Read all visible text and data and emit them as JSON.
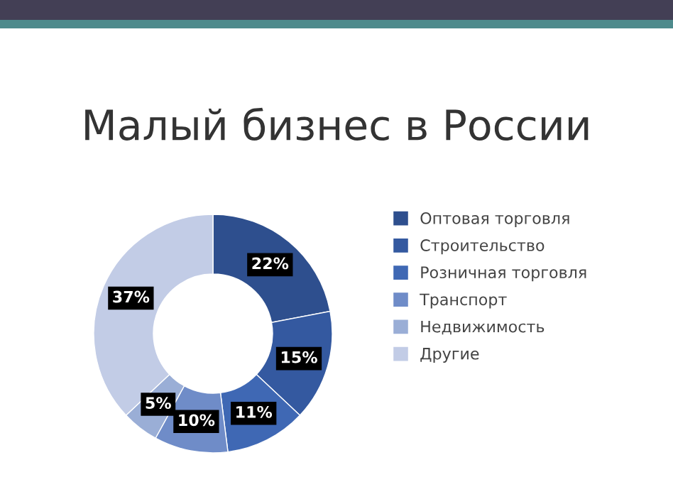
{
  "chart_data": {
    "type": "donut",
    "title": "Малый бизнес в России",
    "categories": [
      "Оптовая торговля",
      "Строительство",
      "Розничная торговля",
      "Транспорт",
      "Недвижимость",
      "Другие"
    ],
    "values": [
      22,
      15,
      11,
      10,
      5,
      37
    ],
    "value_labels": [
      "22%",
      "15%",
      "11%",
      "10%",
      "5%",
      "37%"
    ],
    "colors": [
      "#2e4f8e",
      "#3459a0",
      "#3f68b4",
      "#6f8cc8",
      "#9aaed6",
      "#c2cce6"
    ],
    "legend": "right"
  }
}
